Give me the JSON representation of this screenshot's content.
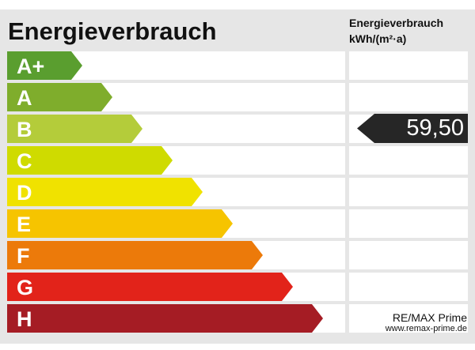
{
  "title": "Energieverbrauch",
  "unit_header": {
    "line1": "Energieverbrauch",
    "line2": "kWh/(m²·a)"
  },
  "classes": [
    {
      "label": "A+",
      "color": "#5a9e2f"
    },
    {
      "label": "A",
      "color": "#7fad2c"
    },
    {
      "label": "B",
      "color": "#b4cc3a"
    },
    {
      "label": "C",
      "color": "#cfdb00"
    },
    {
      "label": "D",
      "color": "#f0e200"
    },
    {
      "label": "E",
      "color": "#f6c400"
    },
    {
      "label": "F",
      "color": "#ec7a0a"
    },
    {
      "label": "G",
      "color": "#e2231a"
    },
    {
      "label": "H",
      "color": "#a51c24"
    }
  ],
  "indicator": {
    "value": "59,50",
    "class_label": "B",
    "color": "#262626"
  },
  "brand": {
    "name": "RE/MAX Prime",
    "url": "www.remax-prime.de"
  }
}
